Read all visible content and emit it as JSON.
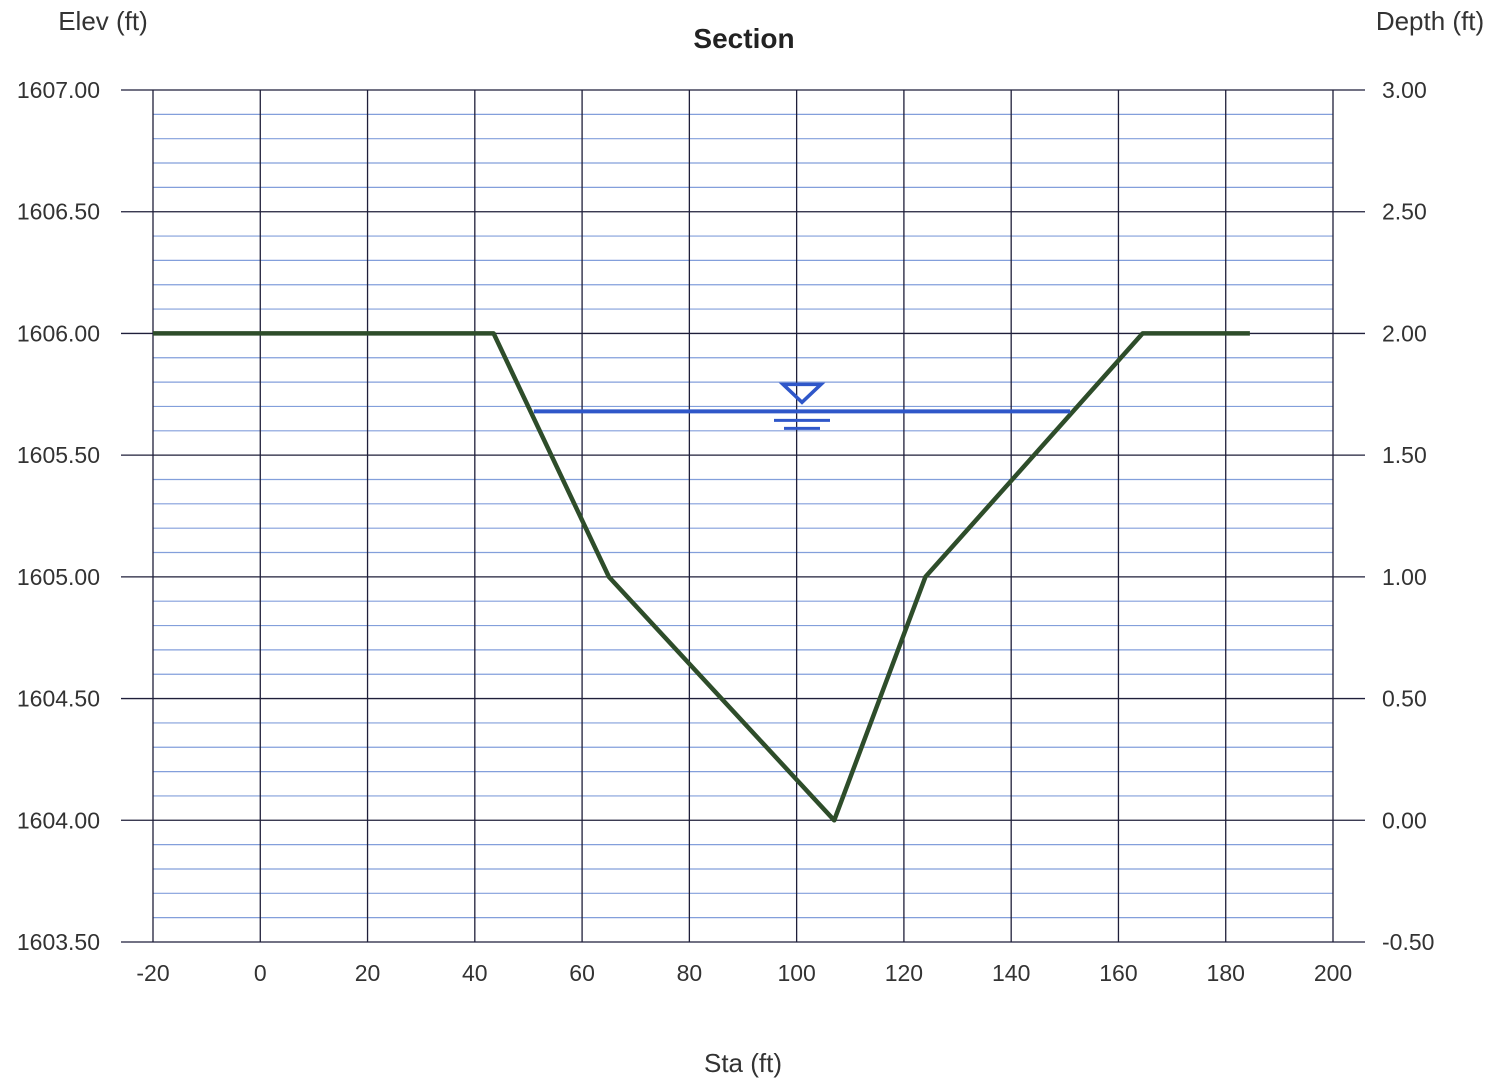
{
  "chart_data": {
    "type": "line",
    "title": "Section",
    "xlabel": "Sta (ft)",
    "ylabel_left": "Elev (ft)",
    "ylabel_right": "Depth (ft)",
    "xlim": [
      -20,
      200
    ],
    "ylim": [
      1603.5,
      1607.0
    ],
    "ylim_right": [
      -0.5,
      3.0
    ],
    "x_ticks": [
      "-20",
      "0",
      "20",
      "40",
      "60",
      "80",
      "100",
      "120",
      "140",
      "160",
      "180",
      "200"
    ],
    "y_ticks_left": [
      "1607.00",
      "1606.50",
      "1606.00",
      "1605.50",
      "1605.00",
      "1604.50",
      "1604.00",
      "1603.50"
    ],
    "y_ticks_right": [
      "3.00",
      "2.50",
      "2.00",
      "1.50",
      "1.00",
      "0.50",
      "0.00",
      "-0.50"
    ],
    "grid": true,
    "colors": {
      "grid_major": "#1f1f3a",
      "grid_minor": "#5a7fd0",
      "section_line": "#2e4d2a",
      "water": "#2f57c9"
    },
    "series": [
      {
        "x": [
          -20,
          43.5,
          65,
          107,
          124,
          164.5,
          184.5
        ],
        "y": [
          1606.0,
          1606.0,
          1605.0,
          1604.0,
          1605.0,
          1606.0,
          1606.0
        ]
      }
    ],
    "water_surface": {
      "elevation": 1605.68,
      "x_start": 51,
      "x_end": 151,
      "symbol_x": 101
    }
  }
}
